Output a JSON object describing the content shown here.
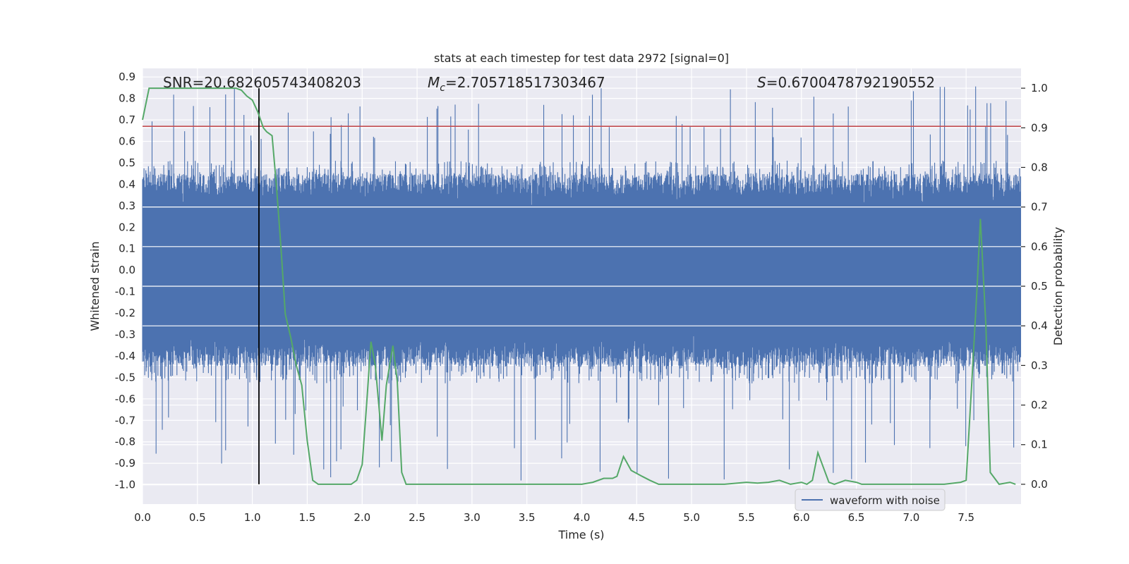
{
  "chart_data": {
    "type": "line",
    "title": "stats at each timestep for test data 2972 [signal=0]",
    "xlabel": "Time (s)",
    "ylabel_left": "Whitened strain",
    "ylabel_right": "Detection probability",
    "xlim": [
      0.0,
      8.0
    ],
    "ylim_left": [
      -1.09,
      0.94
    ],
    "ylim_right": [
      -0.05,
      1.05
    ],
    "xticks": [
      "0.0",
      "0.5",
      "1.0",
      "1.5",
      "2.0",
      "2.5",
      "3.0",
      "3.5",
      "4.0",
      "4.5",
      "5.0",
      "5.5",
      "6.0",
      "6.5",
      "7.0",
      "7.5"
    ],
    "xtick_values": [
      0.0,
      0.5,
      1.0,
      1.5,
      2.0,
      2.5,
      3.0,
      3.5,
      4.0,
      4.5,
      5.0,
      5.5,
      6.0,
      6.5,
      7.0,
      7.5
    ],
    "yticks_left": [
      "0.9",
      "0.8",
      "0.7",
      "0.6",
      "0.5",
      "0.4",
      "0.3",
      "0.2",
      "0.1",
      "0.0",
      "-0.1",
      "-0.2",
      "-0.3",
      "-0.4",
      "-0.5",
      "-0.6",
      "-0.7",
      "-0.8",
      "-0.9",
      "-1.0"
    ],
    "ytick_values_left": [
      0.9,
      0.8,
      0.7,
      0.6,
      0.5,
      0.4,
      0.3,
      0.2,
      0.1,
      0.0,
      -0.1,
      -0.2,
      -0.3,
      -0.4,
      -0.5,
      -0.6,
      -0.7,
      -0.8,
      -0.9,
      -1.0
    ],
    "yticks_right": [
      "1.0",
      "0.9",
      "0.8",
      "0.7",
      "0.6",
      "0.5",
      "0.4",
      "0.3",
      "0.2",
      "0.1",
      "0.0"
    ],
    "ytick_values_right": [
      1.0,
      0.9,
      0.8,
      0.7,
      0.6,
      0.5,
      0.4,
      0.3,
      0.2,
      0.1,
      0.0
    ],
    "annotations": {
      "snr": "SNR=20.682605743408203",
      "mc_symbol": "M",
      "mc_sub": "c",
      "mc_value": "=2.705718517303467",
      "s_symbol": "S",
      "s_value": "=0.6700478792190552"
    },
    "threshold": 0.67,
    "vline_x": 1.06,
    "legend": {
      "label": "waveform with noise",
      "placement": "lower-right"
    },
    "grid": true,
    "colors": {
      "waveform": "#4c72b0",
      "probability": "#55a868",
      "threshold": "#c44e52",
      "vline": "#000000",
      "background": "#eaeaf2",
      "grid": "#ffffff"
    },
    "series": [
      {
        "name": "waveform with noise",
        "role": "waveform",
        "notes": "dense whitened noise, mostly within ±0.3, spikes to ~0.86 and ~-1.0",
        "envelope": [
          0.3,
          -0.3
        ],
        "peak_max": 0.86,
        "peak_min": -1.0
      },
      {
        "role": "detection_probability",
        "x": [
          0.0,
          0.06,
          0.12,
          0.2,
          0.3,
          0.4,
          0.5,
          0.6,
          0.7,
          0.8,
          0.85,
          0.9,
          0.95,
          1.0,
          1.05,
          1.1,
          1.13,
          1.18,
          1.22,
          1.26,
          1.3,
          1.35,
          1.4,
          1.45,
          1.5,
          1.55,
          1.6,
          1.7,
          1.8,
          1.9,
          1.95,
          2.0,
          2.04,
          2.08,
          2.12,
          2.18,
          2.22,
          2.28,
          2.32,
          2.36,
          2.4,
          2.45,
          2.5,
          2.6,
          2.8,
          3.0,
          3.2,
          3.5,
          3.8,
          4.0,
          4.1,
          4.2,
          4.28,
          4.32,
          4.38,
          4.45,
          4.55,
          4.62,
          4.7,
          4.8,
          5.0,
          5.3,
          5.5,
          5.6,
          5.7,
          5.8,
          5.9,
          6.0,
          6.05,
          6.1,
          6.15,
          6.19,
          6.25,
          6.3,
          6.4,
          6.5,
          6.55,
          6.6,
          6.7,
          6.9,
          7.1,
          7.3,
          7.45,
          7.5,
          7.55,
          7.6,
          7.63,
          7.68,
          7.72,
          7.8,
          7.9,
          7.95
        ],
        "y": [
          0.92,
          1.0,
          1.0,
          1.0,
          1.0,
          1.0,
          1.0,
          1.0,
          1.0,
          1.0,
          1.0,
          0.995,
          0.98,
          0.97,
          0.94,
          0.9,
          0.89,
          0.88,
          0.75,
          0.6,
          0.43,
          0.37,
          0.3,
          0.25,
          0.11,
          0.01,
          0.0,
          0.0,
          0.0,
          0.0,
          0.01,
          0.05,
          0.2,
          0.36,
          0.3,
          0.11,
          0.25,
          0.35,
          0.26,
          0.03,
          0.0,
          0.0,
          0.0,
          0.0,
          0.0,
          0.0,
          0.0,
          0.0,
          0.0,
          0.0,
          0.005,
          0.015,
          0.015,
          0.02,
          0.07,
          0.035,
          0.02,
          0.01,
          0.0,
          0.0,
          0.0,
          0.0,
          0.005,
          0.003,
          0.005,
          0.01,
          0.0,
          0.005,
          0.0,
          0.01,
          0.08,
          0.05,
          0.005,
          0.0,
          0.01,
          0.005,
          0.0,
          0.0,
          0.0,
          0.0,
          0.0,
          0.0,
          0.005,
          0.01,
          0.25,
          0.5,
          0.67,
          0.4,
          0.03,
          0.0,
          0.005,
          0.0
        ]
      }
    ]
  }
}
